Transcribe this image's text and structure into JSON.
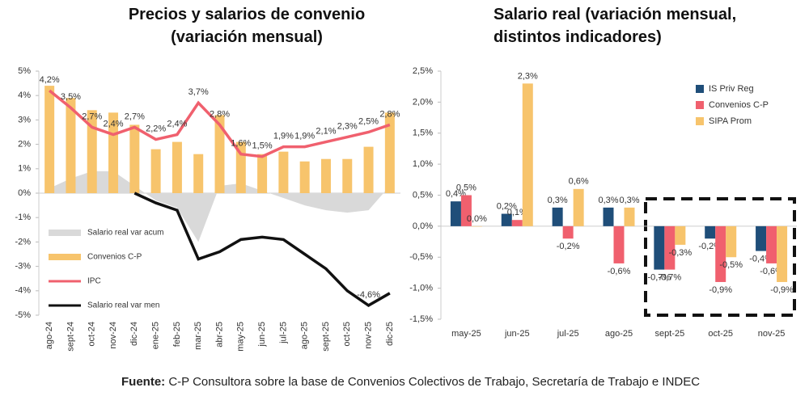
{
  "chart_data": [
    {
      "type": "combo",
      "title": "Precios y salarios de convenio\n(variación mensual)",
      "categories": [
        "ago-24",
        "sept-24",
        "oct-24",
        "nov-24",
        "dic-24",
        "ene-25",
        "feb-25",
        "mar-25",
        "abr-25",
        "may-25",
        "jun-25",
        "jul-25",
        "ago-25",
        "sept-25",
        "oct-25",
        "nov-25",
        "dic-25"
      ],
      "ylim": [
        -5,
        5
      ],
      "yticks": [
        {
          "value": -5,
          "label": "-5%"
        },
        {
          "value": -4,
          "label": "-4%"
        },
        {
          "value": -3,
          "label": "-3%"
        },
        {
          "value": -2,
          "label": "-2%"
        },
        {
          "value": -1,
          "label": "-1%"
        },
        {
          "value": 0,
          "label": "0%"
        },
        {
          "value": 1,
          "label": "1%"
        },
        {
          "value": 2,
          "label": "2%"
        },
        {
          "value": 3,
          "label": "3%"
        },
        {
          "value": 4,
          "label": "4%"
        },
        {
          "value": 5,
          "label": "5%"
        }
      ],
      "grid": false,
      "legend": "lower left",
      "series": [
        {
          "name": "Salario real var acum",
          "kind": "area",
          "color": "#d9d9d9",
          "values": [
            0.2,
            0.6,
            0.9,
            0.9,
            0.3,
            -0.3,
            -0.6,
            -2.0,
            0.3,
            0.4,
            0.1,
            -0.2,
            -0.5,
            -0.7,
            -0.8,
            -0.7,
            0.3
          ]
        },
        {
          "name": "Convenios C-P",
          "kind": "bar",
          "color": "#f7c46c",
          "values": [
            4.4,
            3.9,
            3.4,
            3.3,
            2.8,
            1.8,
            2.1,
            1.6,
            3.2,
            2.1,
            1.6,
            1.7,
            1.3,
            1.4,
            1.4,
            1.9,
            3.3
          ]
        },
        {
          "name": "IPC",
          "kind": "line",
          "color": "#f0606e",
          "values": [
            4.2,
            3.5,
            2.7,
            2.4,
            2.7,
            2.2,
            2.4,
            3.7,
            2.8,
            1.6,
            1.5,
            1.9,
            1.9,
            2.1,
            2.3,
            2.5,
            2.8
          ],
          "value_labels": [
            "4,2%",
            "3,5%",
            "2,7%",
            "2,4%",
            "2,7%",
            "2,2%",
            "2,4%",
            "3,7%",
            "2,8%",
            "1,6%",
            "1,5%",
            "1,9%",
            "1,9%",
            "2,1%",
            "2,3%",
            "2,5%",
            "2,8%"
          ]
        },
        {
          "name": "Salario real var men",
          "kind": "line",
          "color": "#111111",
          "values": [
            null,
            null,
            null,
            null,
            0,
            -0.4,
            -0.7,
            -2.7,
            -2.4,
            -1.9,
            -1.8,
            -1.9,
            -2.5,
            -3.1,
            -4.0,
            -4.6,
            -4.1
          ],
          "value_labels": [
            null,
            null,
            null,
            null,
            null,
            null,
            null,
            null,
            null,
            null,
            null,
            null,
            null,
            null,
            null,
            "-4,6%",
            null
          ]
        }
      ]
    },
    {
      "type": "bar",
      "title": "Salario real (variación mensual,\ndistintos indicadores)",
      "categories": [
        "may-25",
        "jun-25",
        "jul-25",
        "ago-25",
        "sept-25",
        "oct-25",
        "nov-25"
      ],
      "ylim": [
        -1.5,
        2.5
      ],
      "yticks": [
        {
          "value": -1.5,
          "label": "-1,5%"
        },
        {
          "value": -1,
          "label": "-1,0%"
        },
        {
          "value": -0.5,
          "label": "-0,5%"
        },
        {
          "value": 0,
          "label": "0,0%"
        },
        {
          "value": 0.5,
          "label": "0,5%"
        },
        {
          "value": 1,
          "label": "1,0%"
        },
        {
          "value": 1.5,
          "label": "1,5%"
        },
        {
          "value": 2,
          "label": "2,0%"
        },
        {
          "value": 2.5,
          "label": "2,5%"
        }
      ],
      "grid": false,
      "legend": "upper right",
      "series": [
        {
          "name": "IS Priv Reg",
          "color": "#1f4e79",
          "values": [
            0.4,
            0.2,
            0.3,
            0.3,
            -0.7,
            -0.2,
            -0.4
          ],
          "value_labels": [
            "0,4%",
            "0,2%",
            "0,3%",
            "0,3%",
            "-0,7%",
            "-0,2%",
            "-0,4%"
          ]
        },
        {
          "name": "Convenios C-P",
          "color": "#f0606e",
          "values": [
            0.5,
            0.1,
            -0.2,
            -0.6,
            -0.7,
            -0.9,
            -0.6
          ],
          "value_labels": [
            "0,5%",
            "0,1%",
            "-0,2%",
            "-0,6%",
            "-0,7%",
            "-0,9%",
            "-0,6%"
          ]
        },
        {
          "name": "SIPA Prom",
          "color": "#f7c46c",
          "values": [
            0.0,
            2.3,
            0.6,
            0.3,
            -0.3,
            -0.5,
            -0.9
          ],
          "value_labels": [
            "0,0%",
            "2,3%",
            "0,6%",
            "0,3%",
            "-0,3%",
            "-0,5%",
            "-0,9%"
          ]
        }
      ]
    }
  ],
  "source": {
    "label": "Fuente:",
    "text": " C-P Consultora sobre la base de Convenios Colectivos de Trabajo, Secretaría de Trabajo e INDEC"
  }
}
